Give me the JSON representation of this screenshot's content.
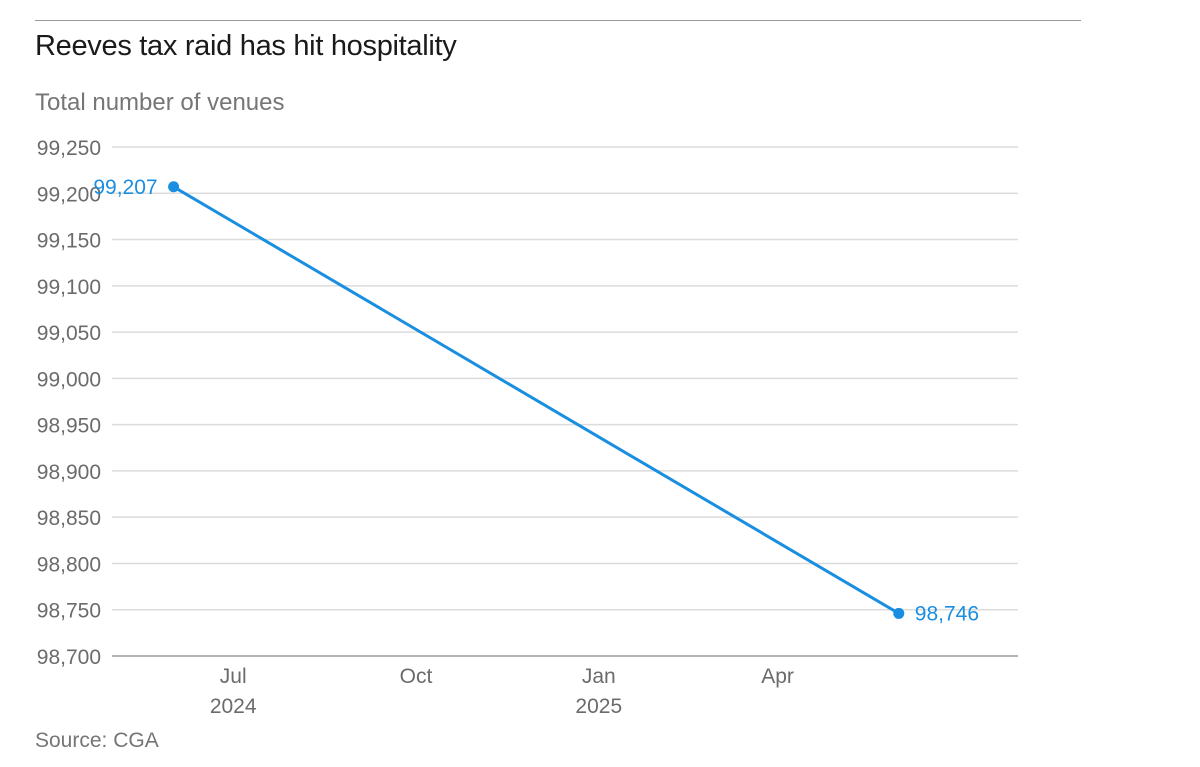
{
  "header": {
    "title": "Reeves tax raid has hit hospitality",
    "subtitle": "Total number of venues"
  },
  "footer": {
    "source": "Source: CGA"
  },
  "colors": {
    "series": "#1a8ee0",
    "axis_text": "#6b6b6b",
    "grid": "#dcdcdc",
    "baseline": "#9a9a9a"
  },
  "chart_data": {
    "type": "line",
    "title": "Reeves tax raid has hit hospitality",
    "subtitle": "Total number of venues",
    "xlabel": "",
    "ylabel": "",
    "ylim": [
      98700,
      99250
    ],
    "yticks": [
      99250,
      99200,
      99150,
      99100,
      99050,
      99000,
      98950,
      98900,
      98850,
      98800,
      98750,
      98700
    ],
    "ytick_labels": [
      "99,250",
      "99,200",
      "99,150",
      "99,100",
      "99,050",
      "99,000",
      "98,950",
      "98,900",
      "98,850",
      "98,800",
      "98,750",
      "98,700"
    ],
    "xlim": [
      "2024-05-01",
      "2025-07-31"
    ],
    "xticks": [
      {
        "date": "2024-07-01",
        "label": "Jul",
        "year": "2024"
      },
      {
        "date": "2024-10-01",
        "label": "Oct",
        "year": ""
      },
      {
        "date": "2025-01-01",
        "label": "Jan",
        "year": "2025"
      },
      {
        "date": "2025-04-01",
        "label": "Apr",
        "year": ""
      }
    ],
    "grid": true,
    "series": [
      {
        "values": [
          {
            "x": "2024-06-01",
            "y": 99207,
            "label": "99,207"
          },
          {
            "x": "2025-06-01",
            "y": 98746,
            "label": "98,746"
          }
        ]
      }
    ],
    "source": "Source: CGA"
  }
}
